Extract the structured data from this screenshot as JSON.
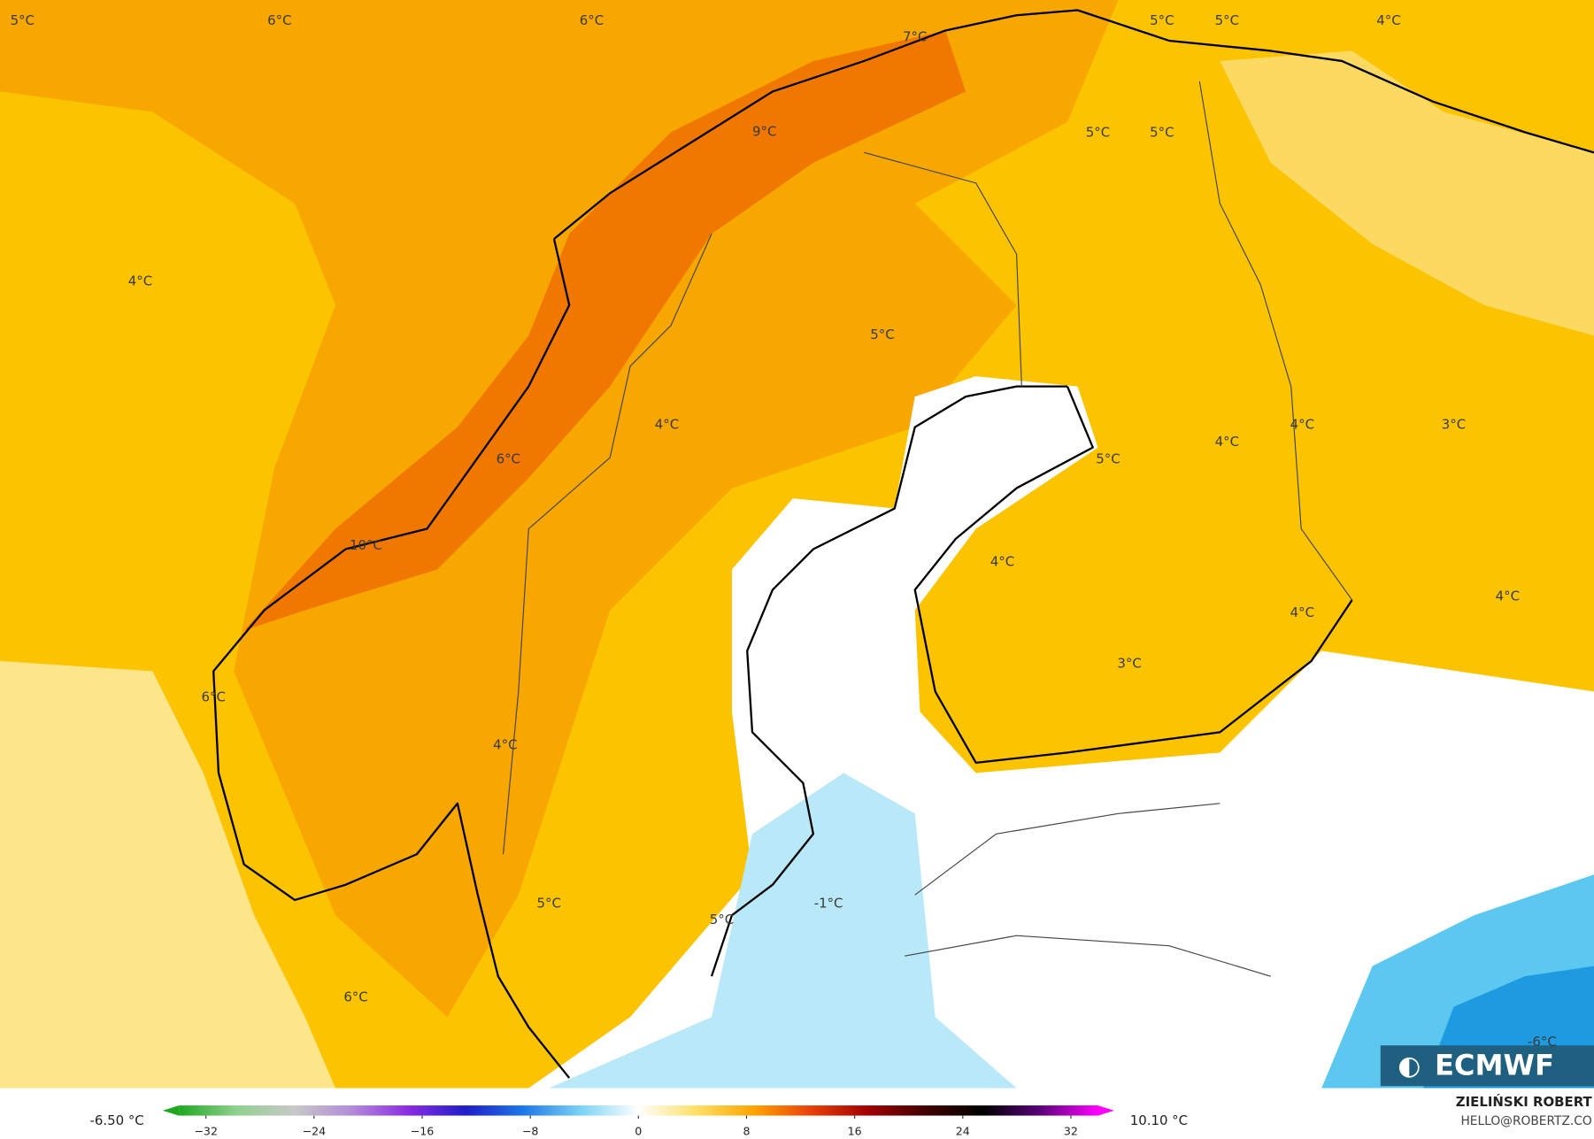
{
  "map": {
    "labels": [
      "5°C",
      "6°C",
      "6°C",
      "7°C",
      "5°C",
      "5°C",
      "4°C",
      "9°C",
      "5°C",
      "5°C",
      "4°C",
      "5°C",
      "4°C",
      "4°C",
      "3°C",
      "4°C",
      "5°C",
      "6°C",
      "10°C",
      "4°C",
      "4°C",
      "4°C",
      "3°C",
      "6°C",
      "4°C",
      "5°C",
      "-1°C",
      "5°C",
      "6°C",
      "-6°C"
    ]
  },
  "colorbar": {
    "min_label": "-6.50 °C",
    "max_label": "10.10 °C",
    "lim": [
      -34,
      34
    ],
    "ticks": [
      {
        "value": -32,
        "label": "−32"
      },
      {
        "value": -24,
        "label": "−24"
      },
      {
        "value": -16,
        "label": "−16"
      },
      {
        "value": -8,
        "label": "−8"
      },
      0,
      8,
      16,
      24,
      32
    ],
    "colors": [
      "#1fa81f",
      "#8fd08f",
      "#c8c8c8",
      "#b48cd8",
      "#8a2be2",
      "#1e1ec8",
      "#1e78e6",
      "#7dd3f5",
      "#ffffff",
      "#ffe066",
      "#ffa500",
      "#e8400a",
      "#a00000",
      "#400000",
      "#000000",
      "#5a007a",
      "#ff00ff"
    ]
  },
  "credit": {
    "name": "ZIELIŃSKI ROBERT",
    "email": "HELLO@ROBERTZ.CO"
  },
  "logo": "ECMWF"
}
